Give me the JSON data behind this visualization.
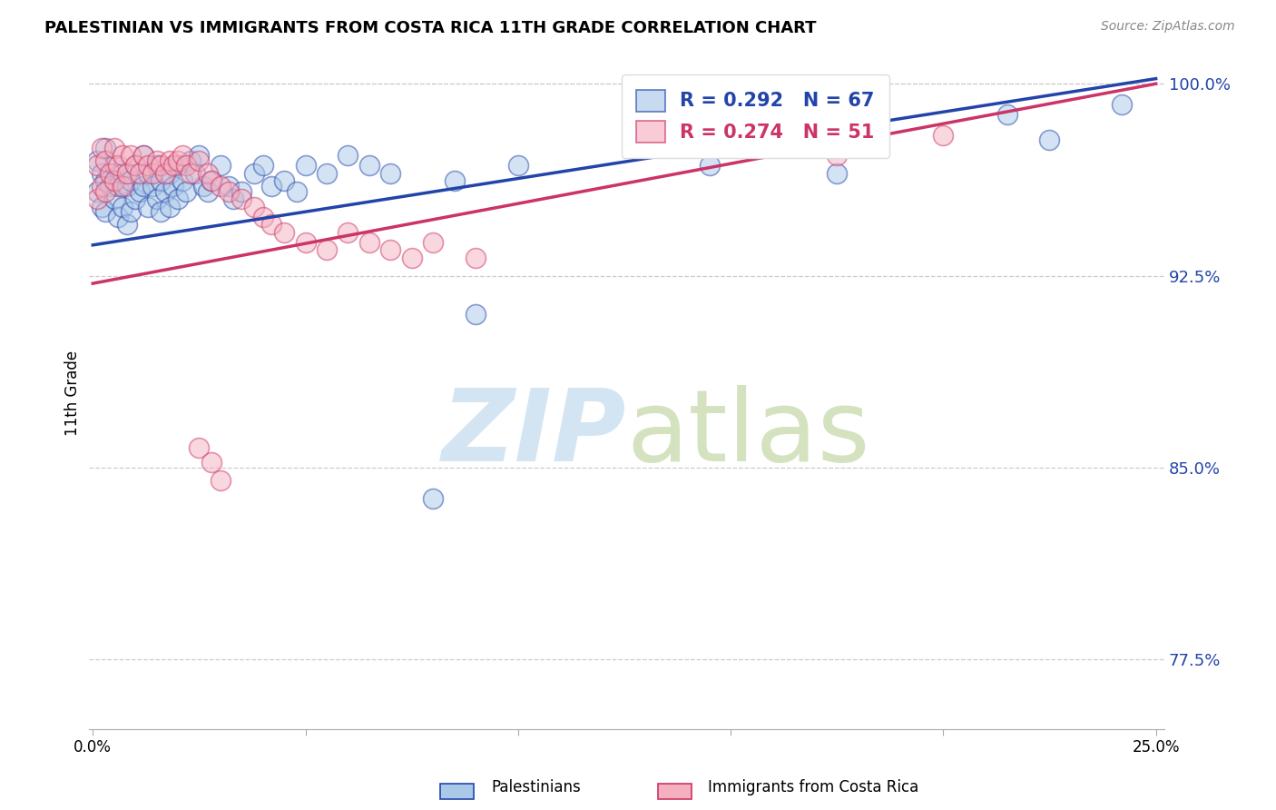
{
  "title": "PALESTINIAN VS IMMIGRANTS FROM COSTA RICA 11TH GRADE CORRELATION CHART",
  "source": "Source: ZipAtlas.com",
  "ylabel": "11th Grade",
  "blue_R": 0.292,
  "blue_N": 67,
  "pink_R": 0.274,
  "pink_N": 51,
  "blue_color": "#aac8e8",
  "pink_color": "#f5b0c0",
  "line_blue": "#2244aa",
  "line_pink": "#cc3366",
  "legend_blue": "Palestinians",
  "legend_pink": "Immigrants from Costa Rica",
  "xlim": [
    -0.001,
    0.252
  ],
  "ylim": [
    0.748,
    1.01
  ],
  "yticks": [
    0.775,
    0.85,
    0.925,
    1.0
  ],
  "ytick_labels": [
    "77.5%",
    "85.0%",
    "92.5%",
    "100.0%"
  ],
  "xticks": [
    0.0,
    0.05,
    0.1,
    0.15,
    0.2,
    0.25
  ],
  "xtick_labels": [
    "0.0%",
    "",
    "",
    "",
    "",
    "25.0%"
  ],
  "blue_points_x": [
    0.001,
    0.001,
    0.002,
    0.002,
    0.003,
    0.003,
    0.003,
    0.004,
    0.005,
    0.005,
    0.006,
    0.006,
    0.007,
    0.007,
    0.008,
    0.008,
    0.009,
    0.009,
    0.01,
    0.01,
    0.011,
    0.012,
    0.012,
    0.013,
    0.013,
    0.014,
    0.015,
    0.015,
    0.016,
    0.016,
    0.017,
    0.018,
    0.018,
    0.019,
    0.02,
    0.02,
    0.021,
    0.022,
    0.023,
    0.024,
    0.025,
    0.026,
    0.027,
    0.028,
    0.03,
    0.032,
    0.033,
    0.035,
    0.038,
    0.04,
    0.042,
    0.045,
    0.048,
    0.05,
    0.055,
    0.06,
    0.065,
    0.07,
    0.08,
    0.09,
    0.1,
    0.145,
    0.175,
    0.215,
    0.225,
    0.242,
    0.085
  ],
  "blue_points_y": [
    0.97,
    0.958,
    0.965,
    0.952,
    0.975,
    0.962,
    0.95,
    0.96,
    0.968,
    0.955,
    0.96,
    0.948,
    0.965,
    0.952,
    0.96,
    0.945,
    0.962,
    0.95,
    0.968,
    0.955,
    0.958,
    0.972,
    0.96,
    0.965,
    0.952,
    0.96,
    0.968,
    0.955,
    0.962,
    0.95,
    0.958,
    0.965,
    0.952,
    0.96,
    0.968,
    0.955,
    0.962,
    0.958,
    0.97,
    0.965,
    0.972,
    0.96,
    0.958,
    0.962,
    0.968,
    0.96,
    0.955,
    0.958,
    0.965,
    0.968,
    0.96,
    0.962,
    0.958,
    0.968,
    0.965,
    0.972,
    0.968,
    0.965,
    0.838,
    0.91,
    0.968,
    0.968,
    0.965,
    0.988,
    0.978,
    0.992,
    0.962
  ],
  "pink_points_x": [
    0.001,
    0.001,
    0.002,
    0.002,
    0.003,
    0.003,
    0.004,
    0.005,
    0.005,
    0.006,
    0.007,
    0.007,
    0.008,
    0.009,
    0.01,
    0.011,
    0.012,
    0.013,
    0.014,
    0.015,
    0.016,
    0.017,
    0.018,
    0.019,
    0.02,
    0.021,
    0.022,
    0.023,
    0.025,
    0.027,
    0.028,
    0.03,
    0.032,
    0.035,
    0.038,
    0.04,
    0.042,
    0.045,
    0.05,
    0.055,
    0.06,
    0.065,
    0.07,
    0.075,
    0.08,
    0.09,
    0.025,
    0.028,
    0.03,
    0.175,
    0.2
  ],
  "pink_points_y": [
    0.968,
    0.955,
    0.975,
    0.96,
    0.97,
    0.958,
    0.965,
    0.975,
    0.962,
    0.968,
    0.972,
    0.96,
    0.965,
    0.972,
    0.968,
    0.965,
    0.972,
    0.968,
    0.965,
    0.97,
    0.968,
    0.965,
    0.97,
    0.968,
    0.97,
    0.972,
    0.968,
    0.965,
    0.97,
    0.965,
    0.962,
    0.96,
    0.958,
    0.955,
    0.952,
    0.948,
    0.945,
    0.942,
    0.938,
    0.935,
    0.942,
    0.938,
    0.935,
    0.932,
    0.938,
    0.932,
    0.858,
    0.852,
    0.845,
    0.972,
    0.98
  ]
}
